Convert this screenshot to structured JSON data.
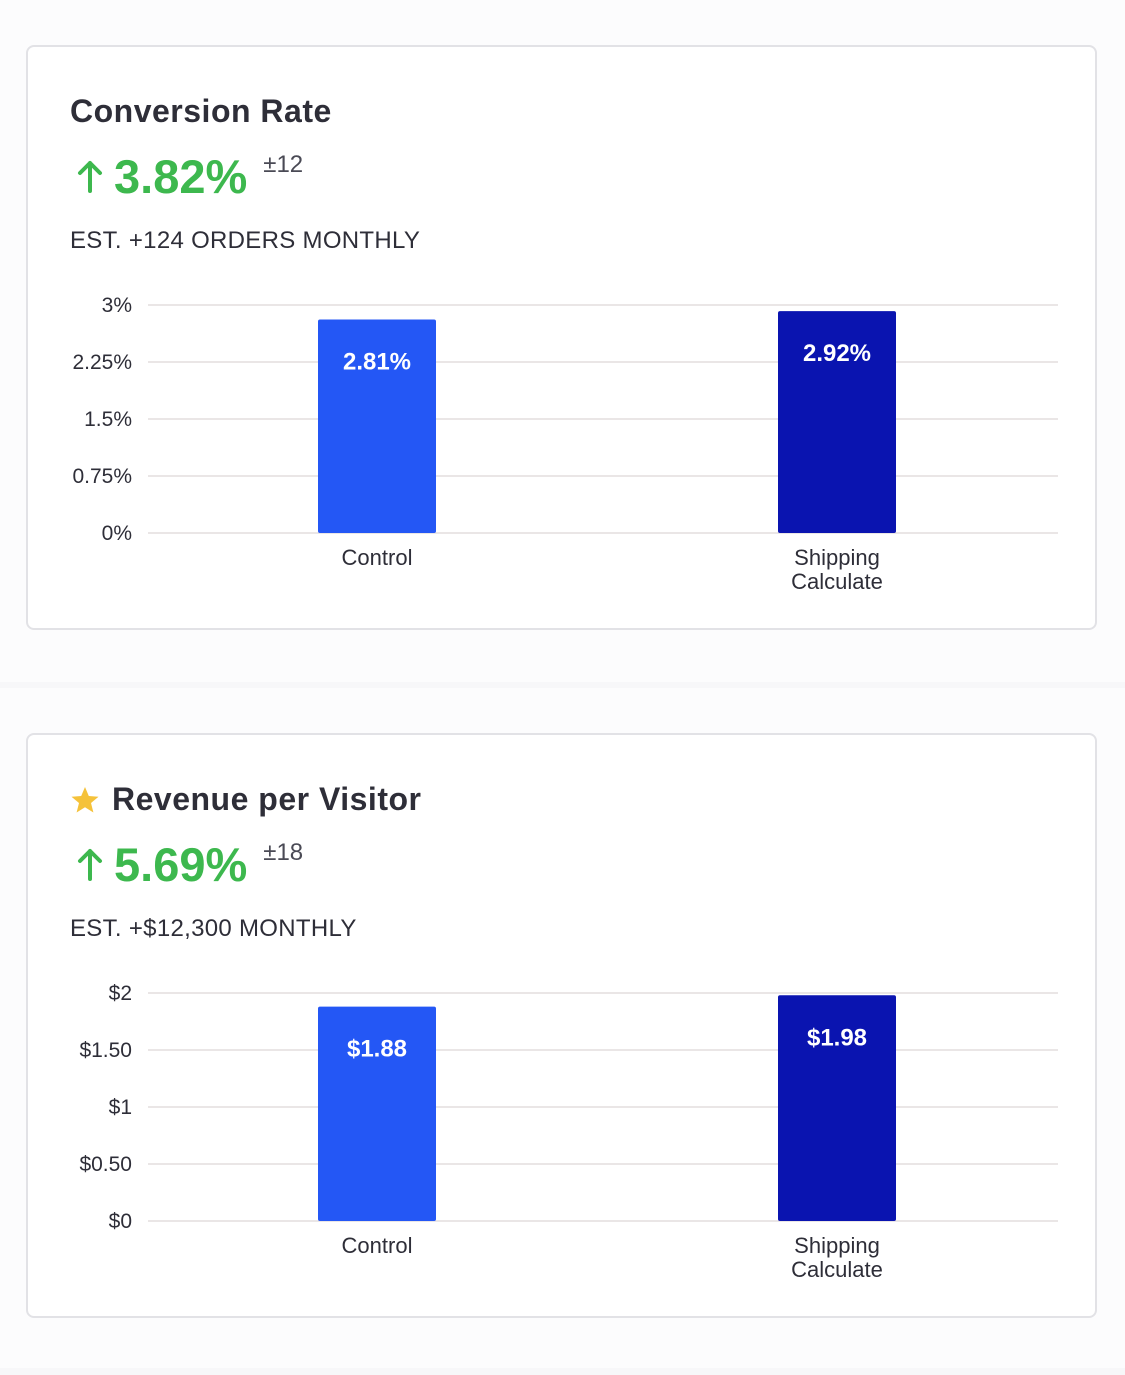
{
  "cards": [
    {
      "title": "Conversion Rate",
      "starred": false,
      "lift": "3.82%",
      "lift_margin": "±12",
      "estimate": "EST. +124 ORDERS MONTHLY"
    },
    {
      "title": "Revenue per Visitor",
      "starred": true,
      "lift": "5.69%",
      "lift_margin": "±18",
      "estimate": "EST. +$12,300 MONTHLY"
    }
  ],
  "colors": {
    "control": "#2457f5",
    "variant": "#0a14b0",
    "lift_positive": "#3db84e",
    "star": "#f5c23a"
  },
  "chart_data": [
    {
      "type": "bar",
      "title": "Conversion Rate",
      "categories": [
        [
          "Control"
        ],
        [
          "Shipping",
          "Calculate"
        ]
      ],
      "values": [
        2.81,
        2.92
      ],
      "value_labels": [
        "2.81%",
        "2.92%"
      ],
      "ylim": [
        0,
        3
      ],
      "yticks": [
        3,
        2.25,
        1.5,
        0.75,
        0
      ],
      "ytick_labels": [
        "3%",
        "2.25%",
        "1.5%",
        "0.75%",
        "0%"
      ],
      "grid": true,
      "xlabel": "",
      "ylabel": ""
    },
    {
      "type": "bar",
      "title": "Revenue per Visitor",
      "categories": [
        [
          "Control"
        ],
        [
          "Shipping",
          "Calculate"
        ]
      ],
      "values": [
        1.88,
        1.98
      ],
      "value_labels": [
        "$1.88",
        "$1.98"
      ],
      "ylim": [
        0,
        2
      ],
      "yticks": [
        2,
        1.5,
        1,
        0.5,
        0
      ],
      "ytick_labels": [
        "$2",
        "$1.50",
        "$1",
        "$0.50",
        "$0"
      ],
      "grid": true,
      "xlabel": "",
      "ylabel": ""
    }
  ]
}
